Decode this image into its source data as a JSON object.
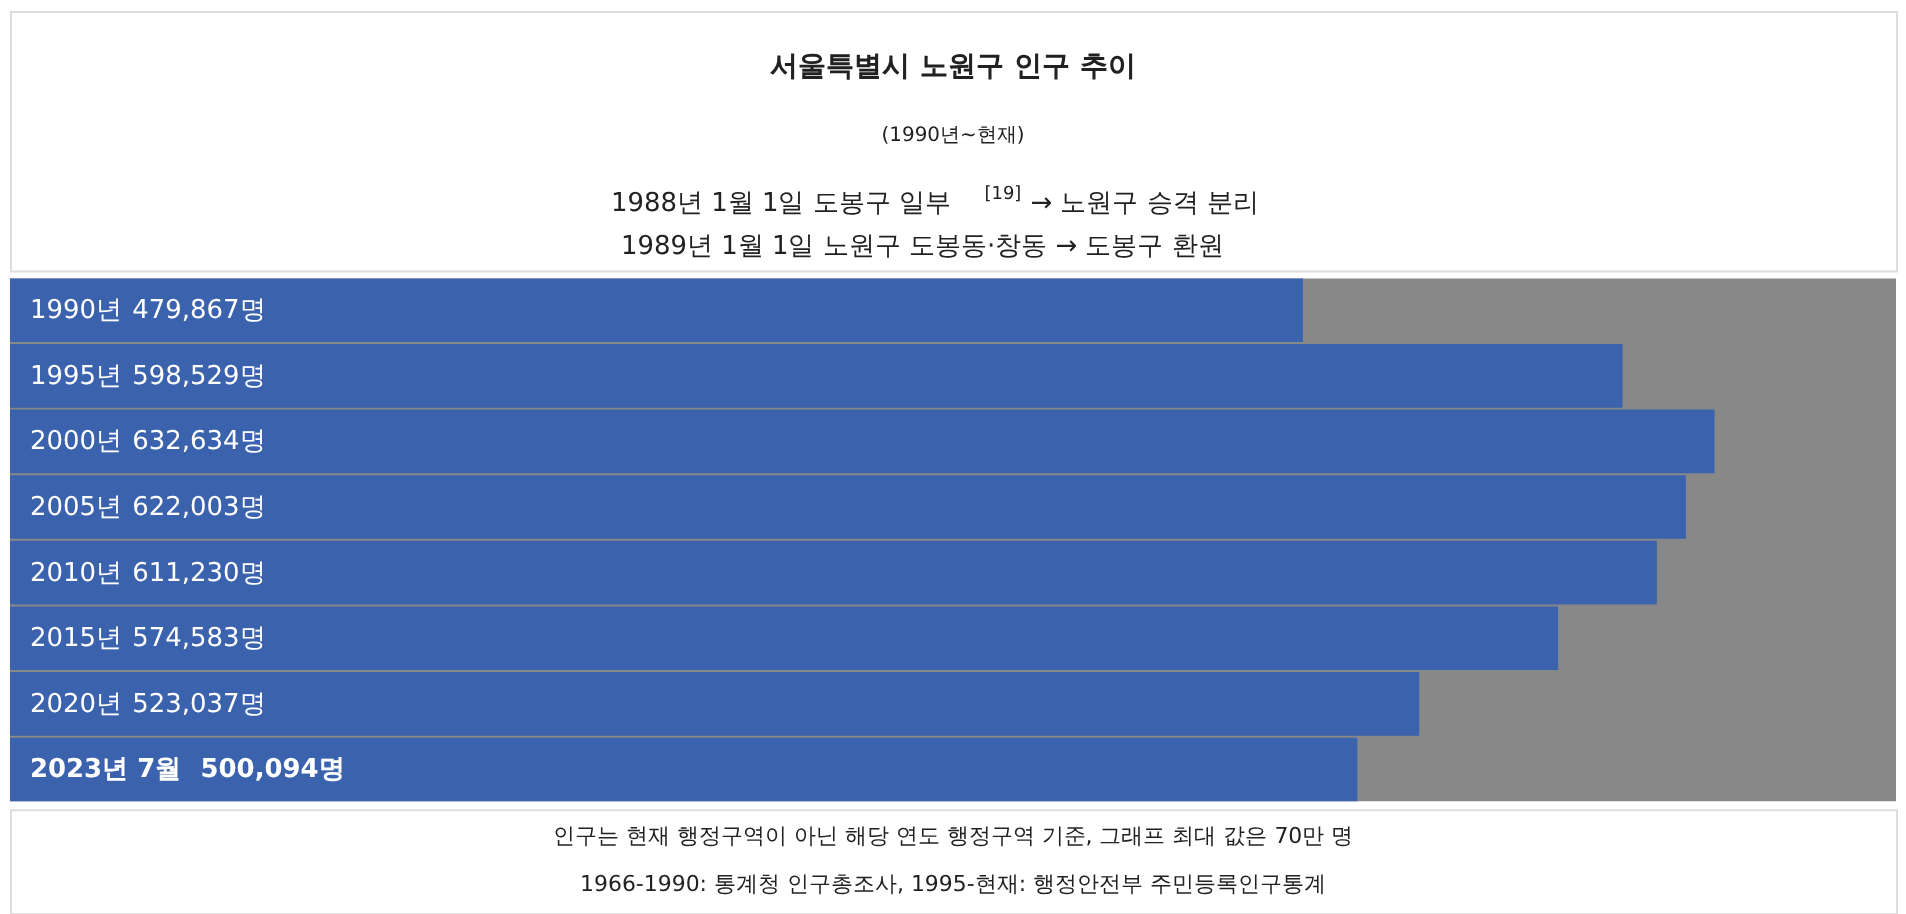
{
  "chart_data": {
    "type": "bar",
    "orientation": "horizontal",
    "title": "서울특별시 노원구 인구 추이",
    "subtitle": "(1990년~현재)",
    "annotations": [
      "1988년 1월 1일 도봉구 일부$^{[19]}$ → 노원구 승격 분리",
      "1989년 1월 1일 노원구 도봉동·창동 → 도봉구 환원",
      "인구는 현재 행정구역이 아닌 해당 연도 행정구역 기준, 그래프 최대 값은 70만 명",
      "1966-1990: 통계청 인구총조사, 1995-현재: 행정안전부 주민등록인구통계"
    ],
    "categories": [
      "1990년",
      "1995년",
      "2000년",
      "2005년",
      "2010년",
      "2015년",
      "2020년",
      "2023년 7월"
    ],
    "values": [
      479867,
      598529,
      632634,
      622003,
      611230,
      574583,
      523037,
      500094
    ],
    "value_labels": [
      "479,867명",
      "598,529명",
      "632,634명",
      "622,003명",
      "611,230명",
      "574,583명",
      "523,037명",
      "500,094명"
    ],
    "color": "#3a62ad",
    "xlim": [
      0,
      700000
    ]
  }
}
